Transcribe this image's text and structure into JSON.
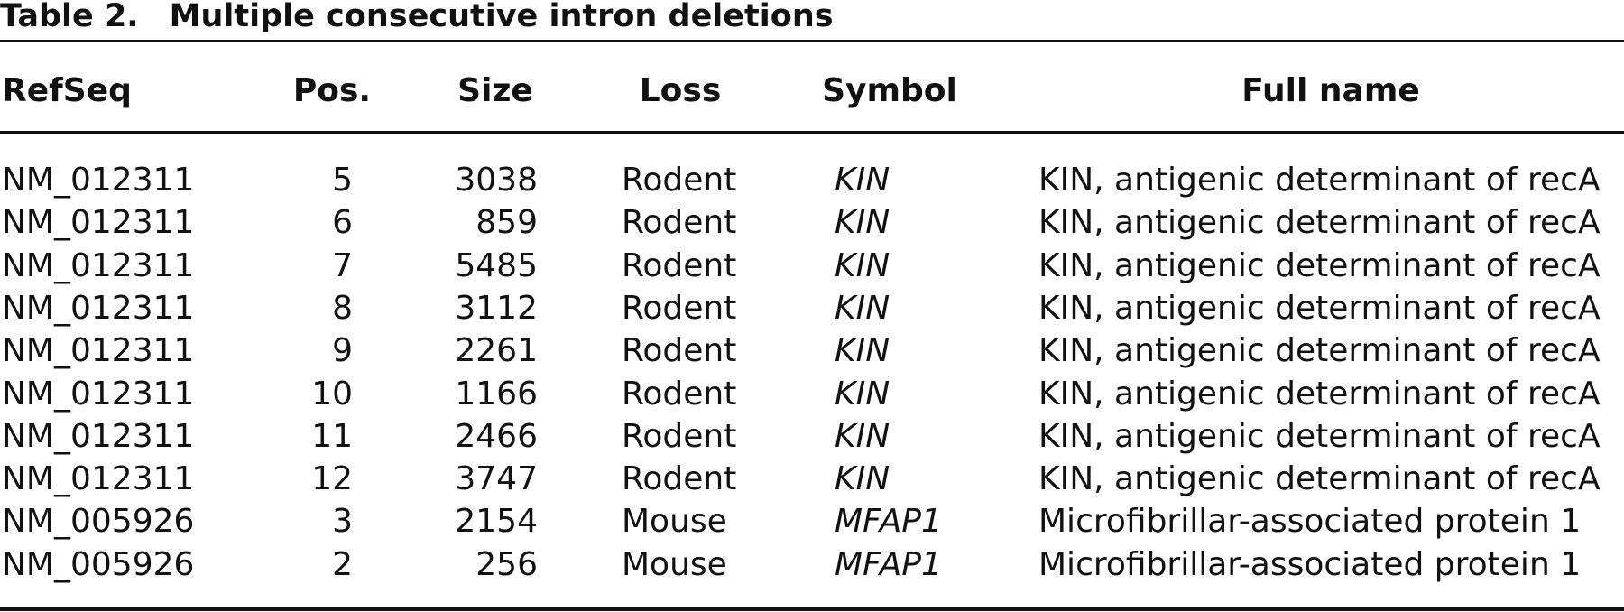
{
  "title": {
    "label": "Table 2.",
    "text": "Multiple consecutive intron deletions"
  },
  "table": {
    "header": [
      "RefSeq",
      "Pos.",
      "Size",
      "Loss",
      "Symbol",
      "Full name"
    ],
    "rows": [
      [
        "NM_012311",
        "5",
        "3038",
        "Rodent",
        "KIN",
        "KIN, antigenic determinant of recA"
      ],
      [
        "NM_012311",
        "6",
        "859",
        "Rodent",
        "KIN",
        "KIN, antigenic determinant of recA"
      ],
      [
        "NM_012311",
        "7",
        "5485",
        "Rodent",
        "KIN",
        "KIN, antigenic determinant of recA"
      ],
      [
        "NM_012311",
        "8",
        "3112",
        "Rodent",
        "KIN",
        "KIN, antigenic determinant of recA"
      ],
      [
        "NM_012311",
        "9",
        "2261",
        "Rodent",
        "KIN",
        "KIN, antigenic determinant of recA"
      ],
      [
        "NM_012311",
        "10",
        "1166",
        "Rodent",
        "KIN",
        "KIN, antigenic determinant of recA"
      ],
      [
        "NM_012311",
        "11",
        "2466",
        "Rodent",
        "KIN",
        "KIN, antigenic determinant of recA"
      ],
      [
        "NM_012311",
        "12",
        "3747",
        "Rodent",
        "KIN",
        "KIN, antigenic determinant of recA"
      ],
      [
        "NM_005926",
        "3",
        "2154",
        "Mouse",
        "MFAP1",
        "Microfibrillar-associated protein 1"
      ],
      [
        "NM_005926",
        "2",
        "256",
        "Mouse",
        "MFAP1",
        "Microfibrillar-associated protein 1"
      ]
    ]
  }
}
